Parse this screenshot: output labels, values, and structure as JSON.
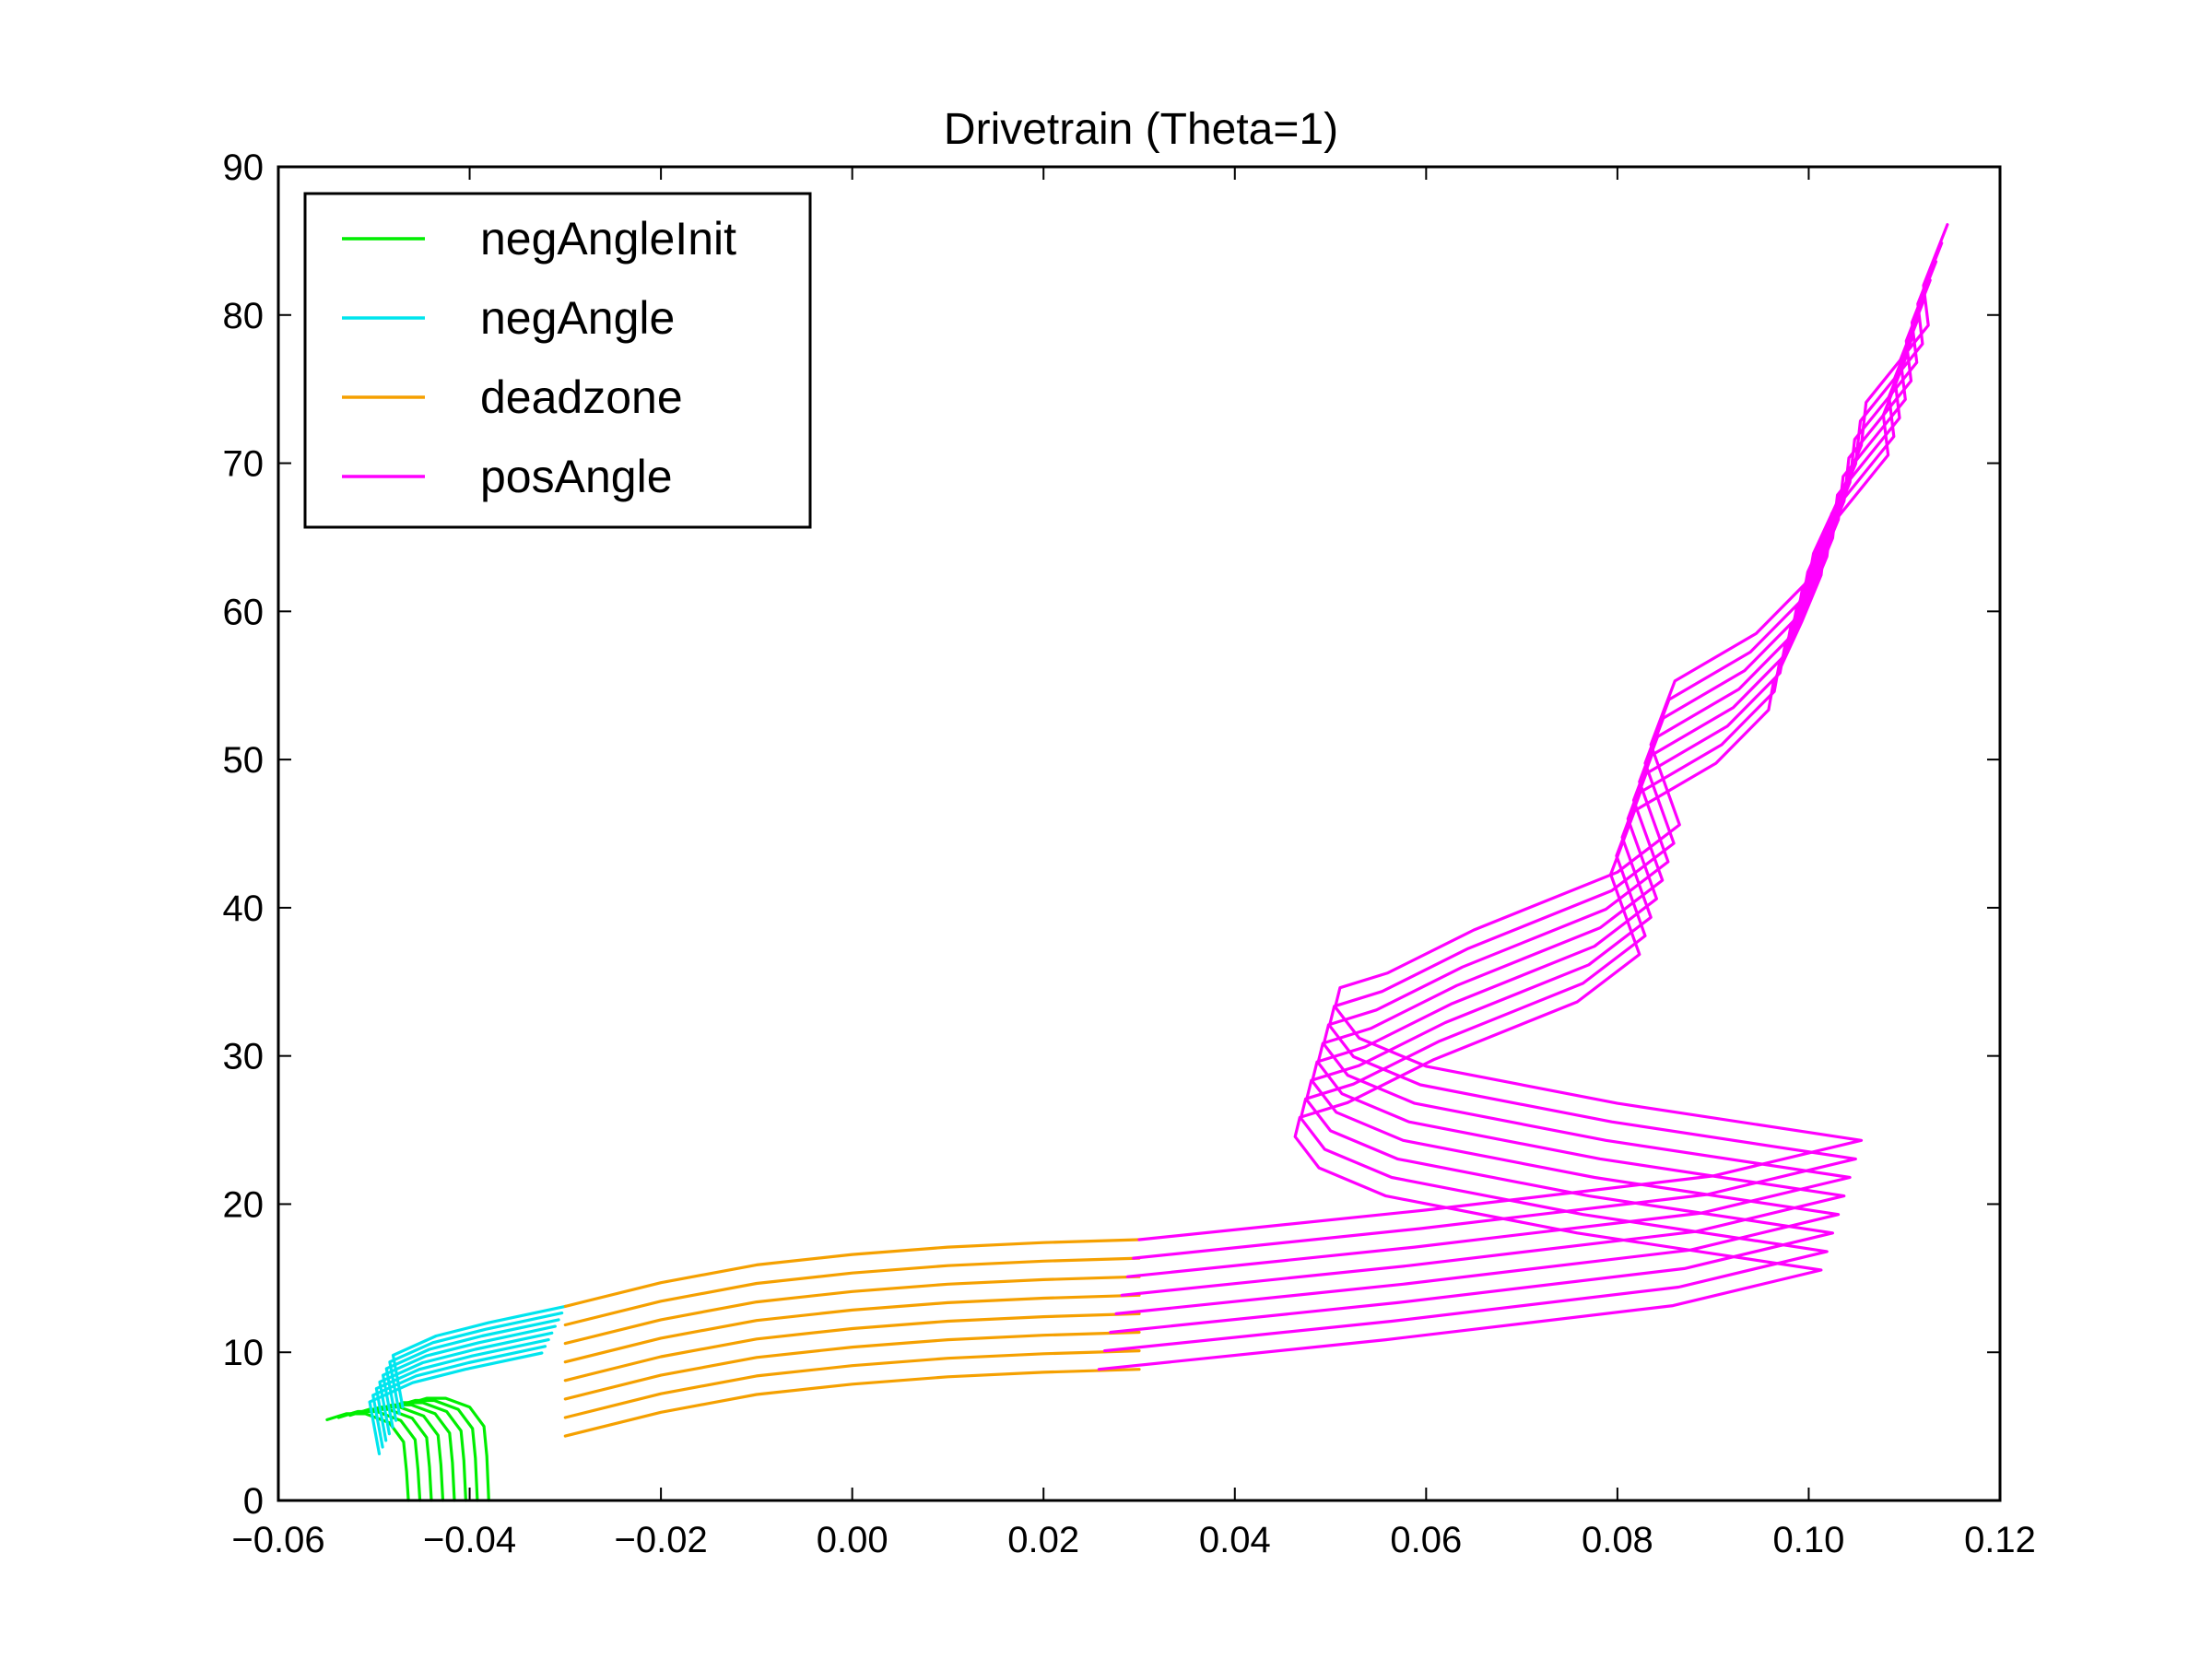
{
  "chart_data": {
    "type": "line",
    "title": "Drivetrain (Theta=1)",
    "xlabel": "",
    "ylabel": "",
    "xlim": [
      -0.06,
      0.12
    ],
    "ylim": [
      0,
      90
    ],
    "x_ticks": [
      -0.06,
      -0.04,
      -0.02,
      0.0,
      0.02,
      0.04,
      0.06,
      0.08,
      0.1,
      0.12
    ],
    "x_tick_labels": [
      "−0.06",
      "−0.04",
      "−0.02",
      "0.00",
      "0.02",
      "0.04",
      "0.06",
      "0.08",
      "0.10",
      "0.12"
    ],
    "y_ticks": [
      0,
      10,
      20,
      30,
      40,
      50,
      60,
      70,
      80,
      90
    ],
    "y_tick_labels": [
      "0",
      "10",
      "20",
      "30",
      "40",
      "50",
      "60",
      "70",
      "80",
      "90"
    ],
    "grid": false,
    "legend": {
      "position": "upper-left",
      "entries": [
        {
          "label": "negAngleInit",
          "color": "#00ee00"
        },
        {
          "label": "negAngle",
          "color": "#00e5ee"
        },
        {
          "label": "deadzone",
          "color": "#f5a000"
        },
        {
          "label": "posAngle",
          "color": "#ff00ff"
        }
      ]
    },
    "curve_count": 8,
    "series": [
      {
        "name": "negAngleInit",
        "color": "#00ee00",
        "points": [
          [
            -0.038,
            0
          ],
          [
            -0.0382,
            3.0
          ],
          [
            -0.0385,
            5.0
          ],
          [
            -0.04,
            6.3
          ],
          [
            -0.0425,
            6.9
          ],
          [
            -0.0445,
            6.9
          ],
          [
            -0.0465,
            6.5
          ]
        ]
      },
      {
        "name": "negAngle",
        "color": "#00e5ee",
        "points": [
          [
            -0.047,
            6.3
          ],
          [
            -0.048,
            9.8
          ],
          [
            -0.0435,
            11.1
          ],
          [
            -0.038,
            12.0
          ],
          [
            -0.03,
            13.1
          ]
        ]
      },
      {
        "name": "deadzone",
        "color": "#f5a000",
        "points": [
          [
            -0.03,
            13.1
          ],
          [
            -0.02,
            14.7
          ],
          [
            -0.01,
            15.9
          ],
          [
            0.0,
            16.6
          ],
          [
            0.01,
            17.1
          ],
          [
            0.02,
            17.4
          ],
          [
            0.03,
            17.6
          ]
        ]
      },
      {
        "name": "posAngle",
        "color": "#ff00ff",
        "points": [
          [
            0.03,
            17.6
          ],
          [
            0.06,
            19.6
          ],
          [
            0.09,
            21.9
          ],
          [
            0.1055,
            24.3
          ],
          [
            0.08,
            26.8
          ],
          [
            0.06,
            29.3
          ],
          [
            0.053,
            31.2
          ],
          [
            0.0505,
            33.3
          ],
          [
            0.051,
            34.6
          ],
          [
            0.056,
            35.6
          ],
          [
            0.065,
            38.5
          ],
          [
            0.08,
            42.4
          ],
          [
            0.0865,
            45.6
          ],
          [
            0.0835,
            51.0
          ],
          [
            0.086,
            55.3
          ],
          [
            0.0945,
            58.5
          ],
          [
            0.1,
            62.1
          ],
          [
            0.1005,
            63.9
          ],
          [
            0.1035,
            68.1
          ],
          [
            0.1055,
            71.2
          ],
          [
            0.106,
            74.1
          ],
          [
            0.1125,
            79.3
          ],
          [
            0.112,
            82.0
          ],
          [
            0.1145,
            86.1
          ]
        ]
      }
    ]
  }
}
